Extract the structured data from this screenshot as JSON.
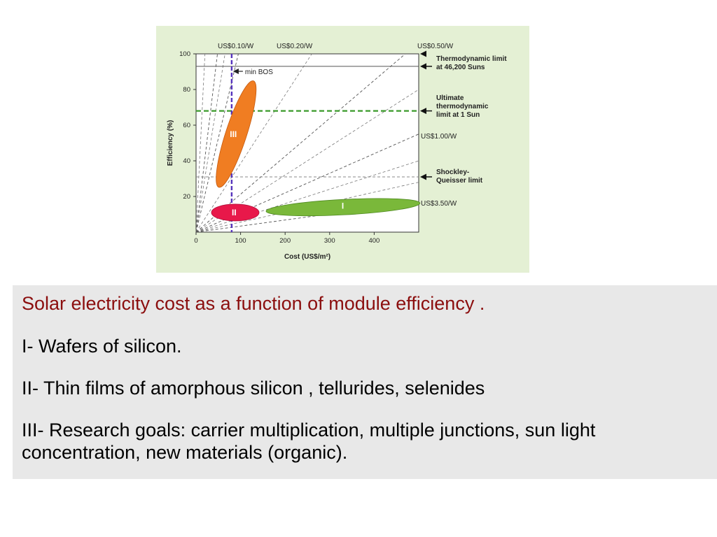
{
  "chart_data": {
    "type": "scatter",
    "xlabel": "Cost (US$/m²)",
    "ylabel": "Efficiency (%)",
    "xlim": [
      0,
      500
    ],
    "ylim": [
      0,
      100
    ],
    "x_ticks": [
      0,
      100,
      200,
      300,
      400
    ],
    "y_ticks": [
      20,
      40,
      60,
      80,
      100
    ],
    "iso_cost_lines": [
      {
        "label": "US$0.10/W",
        "x_at_100": 48
      },
      {
        "label": "US$0.20/W",
        "x_at_100": 95
      },
      {
        "label": "US$0.50/W",
        "x_at_100": 470
      },
      {
        "label": "US$1.00/W",
        "x_at_55": 495
      },
      {
        "label": "US$3.50/W",
        "x_at_17": 495
      }
    ],
    "horizontal_limits": [
      {
        "name": "Thermodynamic limit at 46,200 Suns",
        "y": 93,
        "color": "#555555",
        "style": "solid"
      },
      {
        "name": "Ultimate thermodynamic limit at 1 Sun",
        "y": 68,
        "color": "#3a9a2a",
        "style": "dashed"
      },
      {
        "name": "Shockley-Queisser limit",
        "y": 31,
        "color": "#888888",
        "style": "dashed"
      }
    ],
    "vertical_markers": [
      {
        "name": "min BOS",
        "x": 80,
        "color": "#5533bb"
      }
    ],
    "regions": [
      {
        "label": "III",
        "cx": 90,
        "cy": 55,
        "rx_eff": 64,
        "rx": 10,
        "color": "#f07d22",
        "angle": -72
      },
      {
        "label": "II",
        "cx": 88,
        "cy": 11,
        "rx": 33,
        "ry": 5,
        "color": "#e8184a",
        "angle": 0
      },
      {
        "label": "I",
        "cx": 330,
        "cy": 14,
        "rx": 170,
        "ry": 5,
        "color": "#7ab83a",
        "angle": -3
      }
    ],
    "right_annotations": [
      {
        "text_lines": [
          "Thermodynamic limit",
          "at 46,200 Suns"
        ]
      },
      {
        "text_lines": [
          "Ultimate",
          "thermodynamic",
          "limit at 1 Sun"
        ]
      },
      {
        "text_lines": [
          "Shockley-",
          "Queisser limit"
        ]
      }
    ]
  },
  "caption": {
    "title": "Solar electricity cost as a function of module efficiency .",
    "line1": "I- Wafers of silicon.",
    "line2": "II- Thin films of  amorphous silicon , tellurides, selenides",
    "line3": "III- Research goals: carrier multiplication,  multiple junctions, sun light concentration, new materials (organic)."
  },
  "colors": {
    "figure_bg": "#e4f0d4",
    "plot_bg": "#ffffff",
    "caption_title": "#8b0e0e",
    "caption_bg": "#e8e8e8"
  }
}
